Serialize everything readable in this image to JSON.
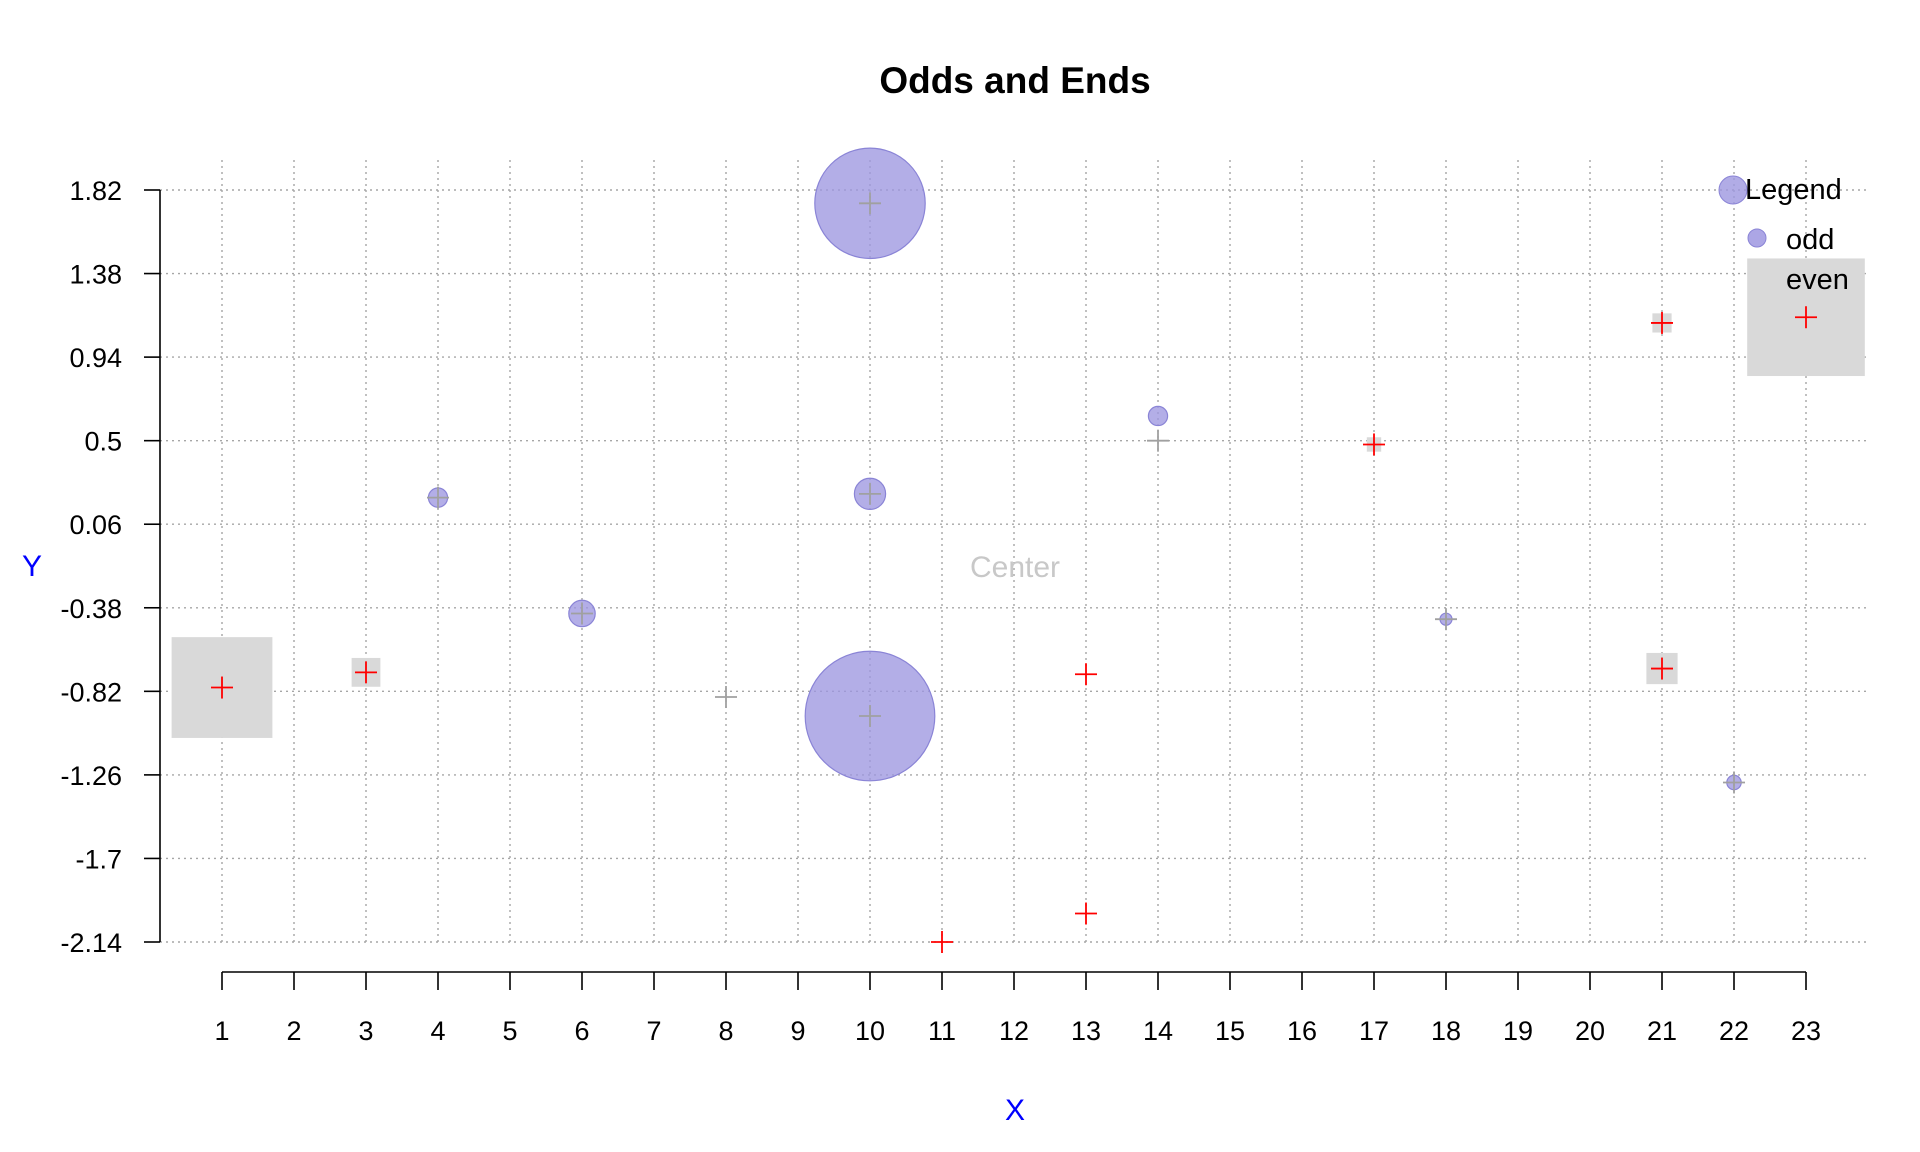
{
  "chart_data": {
    "type": "scatter",
    "title": "Odds and Ends",
    "xlabel": "X",
    "ylabel": "Y",
    "xlim": [
      1,
      23
    ],
    "ylim": [
      -2.14,
      1.82
    ],
    "x_ticks": [
      "1",
      "2",
      "3",
      "4",
      "5",
      "6",
      "7",
      "8",
      "9",
      "10",
      "11",
      "12",
      "13",
      "14",
      "15",
      "16",
      "17",
      "18",
      "19",
      "20",
      "21",
      "22",
      "23"
    ],
    "y_ticks": [
      "1.82",
      "1.38",
      "0.94",
      "0.5",
      "0.06",
      "-0.38",
      "-0.82",
      "-1.26",
      "-1.7",
      "-2.14"
    ],
    "grid": true,
    "annotation": "Center",
    "legend": {
      "position": "top-right",
      "title": "Legend",
      "entries": [
        "odd",
        "even"
      ]
    },
    "colors": {
      "odd": "#9d97e0",
      "even": "#d9d9d9",
      "cross_highlight": "#ff0000",
      "cross_plain": "#a0a0a0",
      "axis_title": "#0000ff"
    },
    "points": [
      {
        "x": 1,
        "y": -0.8,
        "group": "even",
        "size": 4.2,
        "highlight": true
      },
      {
        "x": 3,
        "y": -0.72,
        "group": "even",
        "size": 1.2,
        "highlight": true
      },
      {
        "x": 4,
        "y": 0.2,
        "group": "odd",
        "size": 0.8,
        "highlight": false
      },
      {
        "x": 6,
        "y": -0.41,
        "group": "odd",
        "size": 1.1,
        "highlight": false
      },
      {
        "x": 8,
        "y": -0.85,
        "group": "even",
        "size": 0,
        "highlight": false
      },
      {
        "x": 10,
        "y": 1.75,
        "group": "odd",
        "size": 4.6,
        "highlight": false
      },
      {
        "x": 10,
        "y": 0.22,
        "group": "odd",
        "size": 1.3,
        "highlight": false
      },
      {
        "x": 10,
        "y": -0.95,
        "group": "odd",
        "size": 5.4,
        "highlight": false
      },
      {
        "x": 11,
        "y": -2.14,
        "group": "even",
        "size": 0,
        "highlight": true
      },
      {
        "x": 13,
        "y": -0.73,
        "group": "even",
        "size": 0,
        "highlight": true
      },
      {
        "x": 13,
        "y": -1.99,
        "group": "even",
        "size": 0,
        "highlight": true
      },
      {
        "x": 14,
        "y": 0.5,
        "group": "odd",
        "size": 0.8,
        "highlight": false,
        "marker_y": 0.63
      },
      {
        "x": 17,
        "y": 0.48,
        "group": "even",
        "size": 0.6,
        "highlight": true
      },
      {
        "x": 18,
        "y": -0.44,
        "group": "odd",
        "size": 0.5,
        "highlight": false
      },
      {
        "x": 21,
        "y": 1.12,
        "group": "even",
        "size": 0.8,
        "highlight": true
      },
      {
        "x": 21,
        "y": -0.7,
        "group": "even",
        "size": 1.3,
        "highlight": true
      },
      {
        "x": 22,
        "y": -1.3,
        "group": "odd",
        "size": 0.6,
        "highlight": false
      },
      {
        "x": 23,
        "y": 1.15,
        "group": "even",
        "size": 4.9,
        "highlight": true
      }
    ]
  }
}
